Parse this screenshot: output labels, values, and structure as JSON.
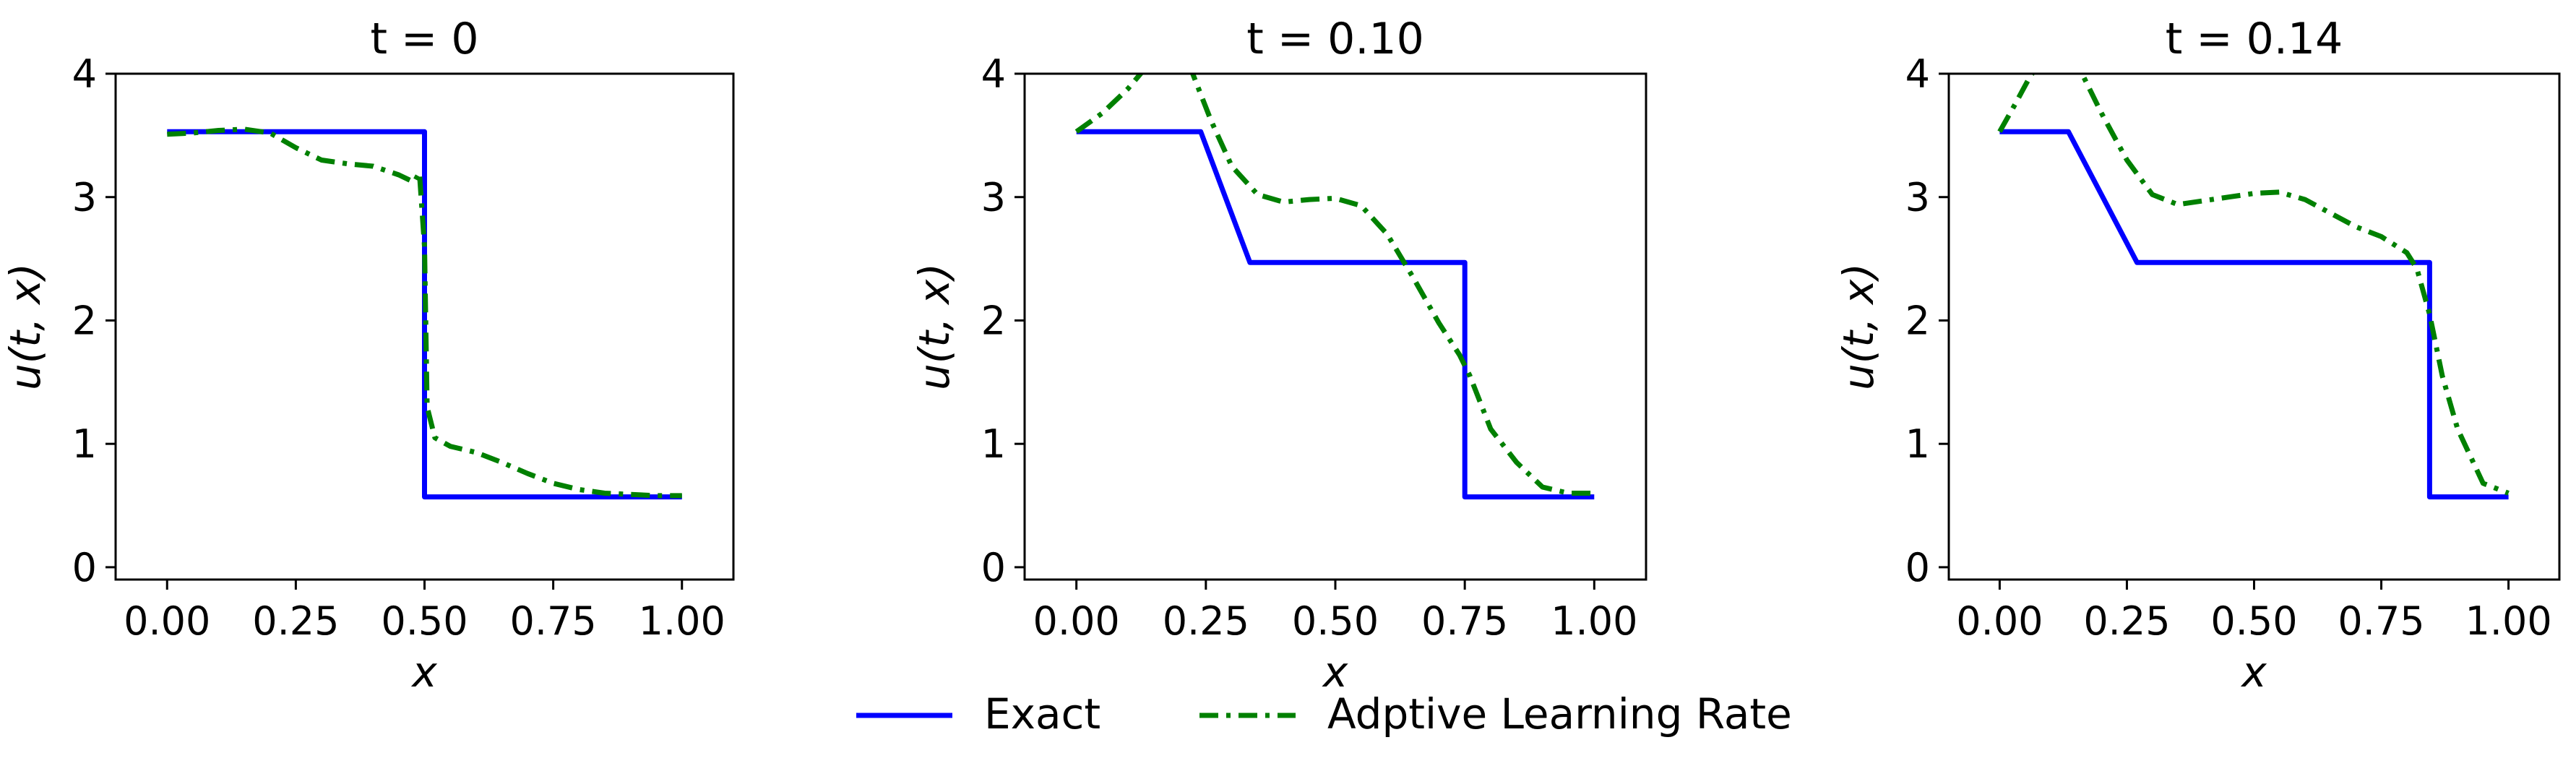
{
  "chart_data": [
    {
      "type": "line",
      "title": "t = 0",
      "xlabel": "x",
      "ylabel": "u(t, x)",
      "xlim": [
        -0.1,
        1.1
      ],
      "ylim": [
        -0.1,
        4.0
      ],
      "xticks": [
        "0.00",
        "0.25",
        "0.50",
        "0.75",
        "1.00"
      ],
      "yticks": [
        "0",
        "1",
        "2",
        "3",
        "4"
      ],
      "grid": false,
      "series": [
        {
          "name": "Exact",
          "color": "#0000ff",
          "style": "solid",
          "x": [
            0.0,
            0.5,
            0.5,
            1.0
          ],
          "y": [
            3.53,
            3.53,
            0.57,
            0.57
          ]
        },
        {
          "name": "Adptive Learning Rate",
          "color": "#008000",
          "style": "dashdot",
          "x": [
            0.0,
            0.05,
            0.1,
            0.15,
            0.2,
            0.25,
            0.3,
            0.35,
            0.4,
            0.45,
            0.48,
            0.49,
            0.5,
            0.505,
            0.52,
            0.55,
            0.6,
            0.65,
            0.7,
            0.75,
            0.8,
            0.85,
            0.9,
            0.95,
            1.0
          ],
          "y": [
            3.51,
            3.52,
            3.54,
            3.55,
            3.52,
            3.4,
            3.3,
            3.27,
            3.25,
            3.18,
            3.12,
            3.2,
            2.6,
            1.3,
            1.05,
            0.98,
            0.93,
            0.85,
            0.76,
            0.68,
            0.63,
            0.6,
            0.59,
            0.58,
            0.58
          ]
        }
      ]
    },
    {
      "type": "line",
      "title": "t = 0.10",
      "xlabel": "x",
      "ylabel": "u(t, x)",
      "xlim": [
        -0.1,
        1.1
      ],
      "ylim": [
        -0.1,
        4.0
      ],
      "xticks": [
        "0.00",
        "0.25",
        "0.50",
        "0.75",
        "1.00"
      ],
      "yticks": [
        "0",
        "1",
        "2",
        "3",
        "4"
      ],
      "grid": false,
      "series": [
        {
          "name": "Exact",
          "color": "#0000ff",
          "style": "solid",
          "x": [
            0.0,
            0.24,
            0.335,
            0.75,
            0.75,
            1.0
          ],
          "y": [
            3.53,
            3.53,
            2.47,
            2.47,
            0.57,
            0.57
          ]
        },
        {
          "name": "Adptive Learning Rate",
          "color": "#008000",
          "style": "dashdot",
          "x": [
            0.0,
            0.05,
            0.1,
            0.14,
            0.18,
            0.22,
            0.26,
            0.3,
            0.35,
            0.4,
            0.45,
            0.5,
            0.55,
            0.6,
            0.65,
            0.7,
            0.74,
            0.76,
            0.8,
            0.85,
            0.9,
            0.95,
            1.0
          ],
          "y": [
            3.53,
            3.68,
            3.88,
            4.08,
            4.25,
            4.05,
            3.62,
            3.25,
            3.02,
            2.96,
            2.98,
            2.99,
            2.93,
            2.7,
            2.35,
            1.98,
            1.72,
            1.55,
            1.12,
            0.85,
            0.65,
            0.6,
            0.6
          ]
        }
      ]
    },
    {
      "type": "line",
      "title": "t = 0.14",
      "xlabel": "x",
      "ylabel": "u(t, x)",
      "xlim": [
        -0.1,
        1.1
      ],
      "ylim": [
        -0.1,
        4.0
      ],
      "xticks": [
        "0.00",
        "0.25",
        "0.50",
        "0.75",
        "1.00"
      ],
      "yticks": [
        "0",
        "1",
        "2",
        "3",
        "4"
      ],
      "grid": false,
      "series": [
        {
          "name": "Exact",
          "color": "#0000ff",
          "style": "solid",
          "x": [
            0.0,
            0.135,
            0.27,
            0.845,
            0.845,
            1.0
          ],
          "y": [
            3.53,
            3.53,
            2.47,
            2.47,
            0.57,
            0.57
          ]
        },
        {
          "name": "Adptive Learning Rate",
          "color": "#008000",
          "style": "dashdot",
          "x": [
            0.0,
            0.03,
            0.06,
            0.1,
            0.15,
            0.2,
            0.25,
            0.3,
            0.35,
            0.4,
            0.45,
            0.5,
            0.55,
            0.6,
            0.65,
            0.7,
            0.75,
            0.8,
            0.82,
            0.845,
            0.87,
            0.9,
            0.95,
            1.0
          ],
          "y": [
            3.53,
            3.75,
            3.98,
            4.2,
            4.1,
            3.68,
            3.3,
            3.02,
            2.94,
            2.97,
            3.0,
            3.03,
            3.04,
            2.98,
            2.87,
            2.76,
            2.68,
            2.55,
            2.42,
            2.05,
            1.55,
            1.12,
            0.68,
            0.6
          ]
        }
      ]
    }
  ],
  "legend": {
    "position": "bottom-center",
    "items": [
      {
        "label": "Exact",
        "color": "#0000ff",
        "style": "solid"
      },
      {
        "label": "Adptive Learning Rate",
        "color": "#008000",
        "style": "dashdot"
      }
    ]
  }
}
